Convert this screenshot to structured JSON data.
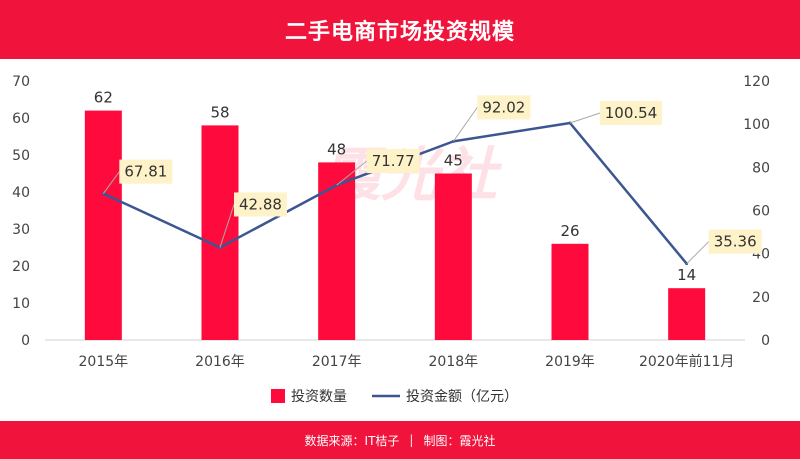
{
  "header": {
    "title": "二手电商市场投资规模"
  },
  "footer": {
    "source": "数据来源：IT桔子",
    "separator": "|",
    "maker": "制图：霞光社"
  },
  "watermark": {
    "text": "霞光社"
  },
  "colors": {
    "brand": "#f0143c",
    "bar": "#ff0a3c",
    "line": "#3c5691",
    "label_bg": "#fdf2c8"
  },
  "chart_data": {
    "type": "bar",
    "title": "二手电商市场投资规模",
    "categories": [
      "2015年",
      "2016年",
      "2017年",
      "2018年",
      "2019年",
      "2020年前11月"
    ],
    "series": [
      {
        "name": "投资数量",
        "type": "bar",
        "axis": "left",
        "values": [
          62,
          58,
          48,
          45,
          26,
          14
        ]
      },
      {
        "name": "投资金额（亿元）",
        "type": "line",
        "axis": "right",
        "values": [
          67.81,
          42.88,
          71.77,
          92.02,
          100.54,
          35.36
        ]
      }
    ],
    "bar_labels": [
      "62",
      "58",
      "48",
      "45",
      "26",
      "14"
    ],
    "line_labels": [
      "67.81",
      "42.88",
      "71.77",
      "92.02",
      "100.54",
      "35.36"
    ],
    "y_left": {
      "ylim": [
        0,
        70
      ],
      "ticks": [
        "0",
        "10",
        "20",
        "30",
        "40",
        "50",
        "60",
        "70"
      ]
    },
    "y_right": {
      "ylim": [
        0,
        120
      ],
      "ticks": [
        "0",
        "20",
        "40",
        "60",
        "80",
        "100",
        "120"
      ]
    },
    "grid": false,
    "legend": {
      "position": "bottom",
      "entries": [
        "投资数量",
        "投资金额（亿元）"
      ]
    }
  }
}
